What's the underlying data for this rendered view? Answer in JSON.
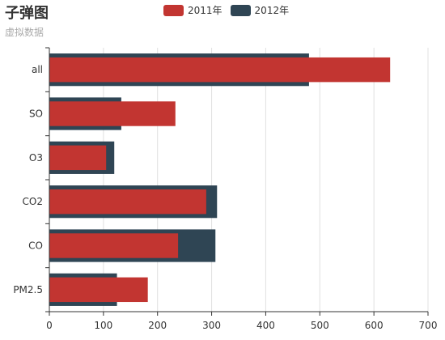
{
  "chart_data": {
    "type": "bar",
    "orientation": "horizontal",
    "title": "子弹图",
    "subtitle": "虚拟数据",
    "categories": [
      "all",
      "SO",
      "O3",
      "CO2",
      "CO",
      "PM2.5"
    ],
    "series": [
      {
        "name": "2012年",
        "color": "#2f4554",
        "values": [
          480,
          133,
          120,
          310,
          307,
          125
        ]
      },
      {
        "name": "2011年",
        "color": "#c23531",
        "values": [
          630,
          233,
          105,
          290,
          238,
          182
        ]
      }
    ],
    "xticks": [
      0,
      100,
      200,
      300,
      400,
      500,
      600,
      700
    ],
    "xlim": [
      0,
      700
    ],
    "grid": "vertical",
    "legend_position": "top-center"
  }
}
